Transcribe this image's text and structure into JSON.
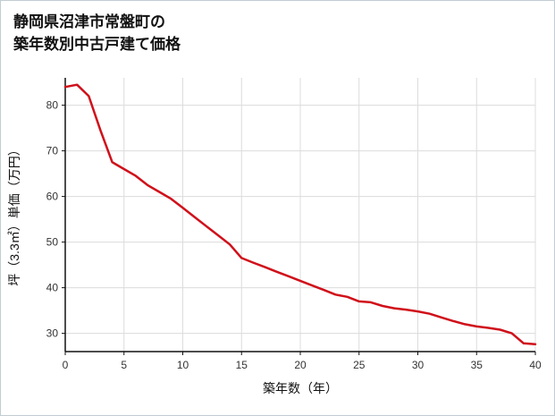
{
  "title": {
    "line1": "静岡県沼津市常盤町の",
    "line2": "築年数別中古戸建て価格"
  },
  "chart_data": {
    "type": "line",
    "title": "静岡県沼津市常盤町の築年数別中古戸建て価格",
    "xlabel": "築年数（年）",
    "ylabel": "坪（3.3㎡）単価（万円）",
    "xlim": [
      0,
      40
    ],
    "ylim": [
      26,
      86
    ],
    "xticks": [
      0,
      5,
      10,
      15,
      20,
      25,
      30,
      35,
      40
    ],
    "yticks": [
      30,
      40,
      50,
      60,
      70,
      80
    ],
    "grid": true,
    "legend": "none",
    "line_color": "#d0101a",
    "grid_color": "#dcdcdc",
    "axis_color": "#111111",
    "tick_label_color": "#333333",
    "x": [
      0,
      1,
      2,
      3,
      4,
      5,
      6,
      7,
      8,
      9,
      10,
      11,
      12,
      13,
      14,
      15,
      16,
      17,
      18,
      19,
      20,
      21,
      22,
      23,
      24,
      25,
      26,
      27,
      28,
      29,
      30,
      31,
      32,
      33,
      34,
      35,
      36,
      37,
      38,
      39,
      40
    ],
    "values": [
      84,
      84.5,
      82,
      74.5,
      67.5,
      66,
      64.5,
      62.5,
      61,
      59.5,
      57.5,
      55.5,
      53.5,
      51.5,
      49.5,
      46.5,
      45.5,
      44.5,
      43.5,
      42.5,
      41.5,
      40.5,
      39.5,
      38.5,
      38,
      37,
      36.8,
      36,
      35.5,
      35.2,
      34.8,
      34.3,
      33.5,
      32.7,
      32,
      31.5,
      31.2,
      30.8,
      30,
      27.8,
      27.6
    ]
  }
}
